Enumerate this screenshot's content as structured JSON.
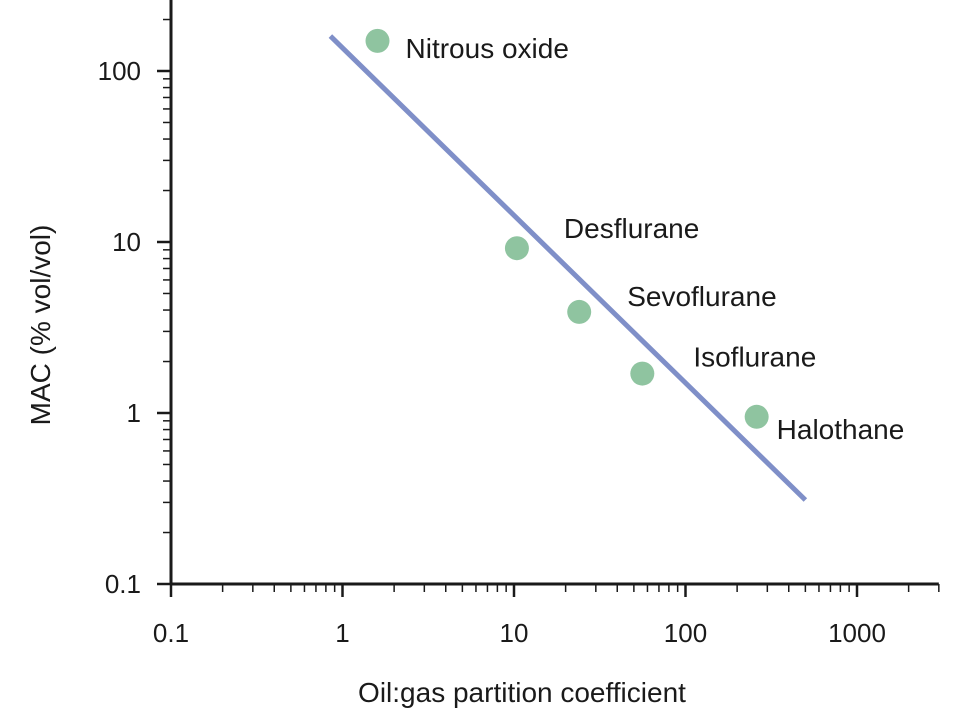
{
  "chart_data": {
    "type": "scatter",
    "title": "",
    "xlabel": "Oil:gas partition coefficient",
    "ylabel": "MAC (% vol/vol)",
    "x_scale": "log",
    "y_scale": "log",
    "xlim": [
      0.1,
      3000
    ],
    "ylim": [
      0.1,
      300
    ],
    "x_ticks": [
      0.1,
      1,
      10,
      100,
      1000
    ],
    "x_tick_labels": [
      "0.1",
      "1",
      "10",
      "100",
      "1000"
    ],
    "y_ticks": [
      0.1,
      1,
      10,
      100
    ],
    "y_tick_labels": [
      "0.1",
      "1",
      "10",
      "100"
    ],
    "grid": false,
    "points": [
      {
        "label": "Nitrous oxide",
        "x": 1.6,
        "y": 150
      },
      {
        "label": "Desflurane",
        "x": 10.4,
        "y": 9.2
      },
      {
        "label": "Sevoflurane",
        "x": 24,
        "y": 3.9
      },
      {
        "label": "Isoflurane",
        "x": 56,
        "y": 1.7
      },
      {
        "label": "Halothane",
        "x": 260,
        "y": 0.95
      }
    ],
    "trend_line": {
      "x": [
        0.85,
        500
      ],
      "y": [
        160,
        0.31
      ]
    },
    "colors": {
      "points": "#8fc4a0",
      "line": "#7f8fc8",
      "axis": "#1a1a1a"
    }
  }
}
